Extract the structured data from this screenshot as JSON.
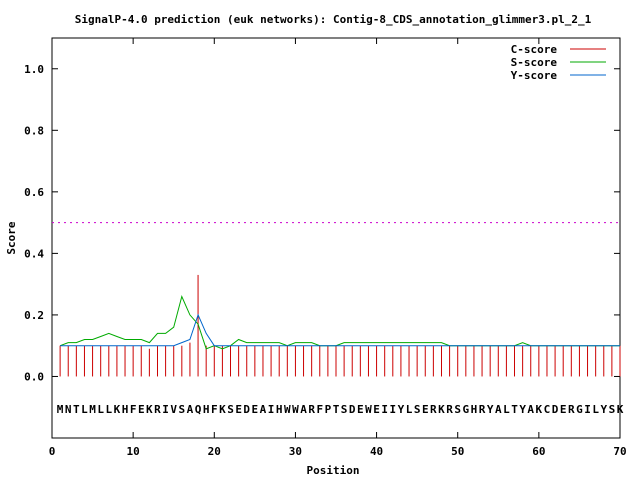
{
  "chart_data": {
    "type": "line",
    "title": "SignalP-4.0 prediction (euk networks): Contig-8_CDS_annotation_glimmer3.pl_2_1",
    "xlabel": "Position",
    "ylabel": "Score",
    "xlim": [
      0,
      70
    ],
    "ylim": [
      -0.2,
      1.1
    ],
    "xticks": [
      0,
      10,
      20,
      30,
      40,
      50,
      60,
      70
    ],
    "yticks": [
      0.0,
      0.2,
      0.4,
      0.6,
      0.8,
      1.0
    ],
    "xtick_labels": [
      "0",
      "10",
      "20",
      "30",
      "40",
      "50",
      "60",
      "70"
    ],
    "ytick_labels": [
      "0.0",
      "0.2",
      "0.4",
      "0.6",
      "0.8",
      "1.0"
    ],
    "threshold": 0.5,
    "legend_position": "top-right",
    "sequence": "MNTLMLLKHFEKRIVSAQHFKSEDEAIHWWARFPTSDEWEIIYLSERKRSGHRYALTYAKCDERGILYSK",
    "x": [
      1,
      2,
      3,
      4,
      5,
      6,
      7,
      8,
      9,
      10,
      11,
      12,
      13,
      14,
      15,
      16,
      17,
      18,
      19,
      20,
      21,
      22,
      23,
      24,
      25,
      26,
      27,
      28,
      29,
      30,
      31,
      32,
      33,
      34,
      35,
      36,
      37,
      38,
      39,
      40,
      41,
      42,
      43,
      44,
      45,
      46,
      47,
      48,
      49,
      50,
      51,
      52,
      53,
      54,
      55,
      56,
      57,
      58,
      59,
      60,
      61,
      62,
      63,
      64,
      65,
      66,
      67,
      68,
      69,
      70
    ],
    "series": [
      {
        "name": "C-score",
        "color": "#cc0000",
        "style": "impulses",
        "values": [
          0.1,
          0.1,
          0.1,
          0.1,
          0.1,
          0.1,
          0.1,
          0.1,
          0.1,
          0.1,
          0.1,
          0.09,
          0.1,
          0.1,
          0.1,
          0.1,
          0.11,
          0.33,
          0.1,
          0.1,
          0.1,
          0.1,
          0.1,
          0.1,
          0.1,
          0.1,
          0.1,
          0.1,
          0.1,
          0.1,
          0.1,
          0.1,
          0.1,
          0.1,
          0.1,
          0.1,
          0.1,
          0.1,
          0.1,
          0.1,
          0.1,
          0.1,
          0.1,
          0.1,
          0.1,
          0.1,
          0.1,
          0.1,
          0.1,
          0.1,
          0.1,
          0.1,
          0.1,
          0.1,
          0.1,
          0.1,
          0.1,
          0.1,
          0.1,
          0.1,
          0.1,
          0.1,
          0.1,
          0.1,
          0.1,
          0.1,
          0.1,
          0.1,
          0.1,
          0.1
        ]
      },
      {
        "name": "S-score",
        "color": "#00aa00",
        "style": "lines",
        "values": [
          0.1,
          0.11,
          0.11,
          0.12,
          0.12,
          0.13,
          0.14,
          0.13,
          0.12,
          0.12,
          0.12,
          0.11,
          0.14,
          0.14,
          0.16,
          0.26,
          0.2,
          0.17,
          0.09,
          0.1,
          0.09,
          0.1,
          0.12,
          0.11,
          0.11,
          0.11,
          0.11,
          0.11,
          0.1,
          0.11,
          0.11,
          0.11,
          0.1,
          0.1,
          0.1,
          0.11,
          0.11,
          0.11,
          0.11,
          0.11,
          0.11,
          0.11,
          0.11,
          0.11,
          0.11,
          0.11,
          0.11,
          0.11,
          0.1,
          0.1,
          0.1,
          0.1,
          0.1,
          0.1,
          0.1,
          0.1,
          0.1,
          0.11,
          0.1,
          0.1,
          0.1,
          0.1,
          0.1,
          0.1,
          0.1,
          0.1,
          0.1,
          0.1,
          0.1,
          0.1
        ]
      },
      {
        "name": "Y-score",
        "color": "#0066cc",
        "style": "lines",
        "values": [
          0.1,
          0.1,
          0.1,
          0.1,
          0.1,
          0.1,
          0.1,
          0.1,
          0.1,
          0.1,
          0.1,
          0.1,
          0.1,
          0.1,
          0.1,
          0.11,
          0.12,
          0.2,
          0.14,
          0.1,
          0.1,
          0.1,
          0.1,
          0.1,
          0.1,
          0.1,
          0.1,
          0.1,
          0.1,
          0.1,
          0.1,
          0.1,
          0.1,
          0.1,
          0.1,
          0.1,
          0.1,
          0.1,
          0.1,
          0.1,
          0.1,
          0.1,
          0.1,
          0.1,
          0.1,
          0.1,
          0.1,
          0.1,
          0.1,
          0.1,
          0.1,
          0.1,
          0.1,
          0.1,
          0.1,
          0.1,
          0.1,
          0.1,
          0.1,
          0.1,
          0.1,
          0.1,
          0.1,
          0.1,
          0.1,
          0.1,
          0.1,
          0.1,
          0.1,
          0.1
        ]
      }
    ],
    "threshold_color": "#cc00cc"
  }
}
